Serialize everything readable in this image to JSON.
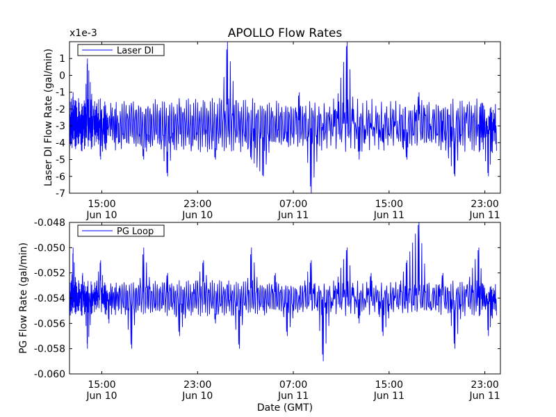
{
  "title": "APOLLO Flow Rates",
  "xlabel": "Date (GMT)",
  "line_color": "#0000ff",
  "chart_data": [
    {
      "type": "line",
      "ylabel": "Laser DI Flow Rate (gal/min)",
      "offset_text": "x1e-3",
      "legend": "Laser DI",
      "legend_position": "upper-left",
      "ylim": [
        -7,
        2
      ],
      "yticks": [
        1,
        0,
        -1,
        -2,
        -3,
        -4,
        -5,
        -6,
        -7
      ],
      "ytick_labels": [
        "1",
        "0",
        "-1",
        "-2",
        "-3",
        "-4",
        "-5",
        "-6",
        "-7"
      ],
      "xticks": [
        {
          "time": "15:00",
          "date": "Jun 10"
        },
        {
          "time": "23:00",
          "date": "Jun 10"
        },
        {
          "time": "07:00",
          "date": "Jun 11"
        },
        {
          "time": "15:00",
          "date": "Jun 11"
        },
        {
          "time": "23:00",
          "date": "Jun 11"
        }
      ],
      "x_hours": [
        12,
        12.3,
        12.6,
        13.0,
        13.4,
        13.8,
        14.3,
        14.9,
        15.6,
        16.5,
        17.5,
        18.5,
        19.5,
        20.5,
        21.5,
        22.5,
        23.5,
        24.5,
        25.5,
        26.5,
        27.5,
        28.5,
        29.5,
        30.5,
        31.5,
        32.5,
        33.5,
        34.5,
        35.5,
        36.5,
        37.5,
        38.5,
        39.5,
        40.5,
        41.5,
        42.5,
        43.5,
        44.5,
        45.5,
        46.5,
        47.3,
        48.0
      ],
      "values": [
        -2.5,
        -5,
        -1,
        -3,
        -4,
        1,
        -2,
        -5,
        -3,
        -4,
        -2,
        -5,
        -3,
        -6,
        -2,
        -4,
        -3,
        -5,
        2,
        -3,
        -5,
        -6,
        -3,
        -4,
        -1,
        -7,
        -3,
        -2,
        2,
        -5,
        -3,
        -4,
        -3,
        -5,
        -1,
        -3,
        -4,
        -6,
        -2,
        -3,
        -6,
        -3
      ]
    },
    {
      "type": "line",
      "ylabel": "PG Flow Rate (gal/min)",
      "legend": "PG Loop",
      "legend_position": "upper-left",
      "ylim": [
        -0.06,
        -0.048
      ],
      "yticks": [
        -0.048,
        -0.05,
        -0.052,
        -0.054,
        -0.056,
        -0.058,
        -0.06
      ],
      "ytick_labels": [
        "-0.048",
        "-0.050",
        "-0.052",
        "-0.054",
        "-0.056",
        "-0.058",
        "-0.060"
      ],
      "xticks": [
        {
          "time": "15:00",
          "date": "Jun 10"
        },
        {
          "time": "23:00",
          "date": "Jun 10"
        },
        {
          "time": "07:00",
          "date": "Jun 11"
        },
        {
          "time": "15:00",
          "date": "Jun 11"
        },
        {
          "time": "23:00",
          "date": "Jun 11"
        }
      ],
      "x_hours": [
        12,
        12.3,
        12.6,
        13.0,
        13.4,
        13.8,
        14.3,
        14.9,
        15.6,
        16.5,
        17.5,
        18.5,
        19.5,
        20.5,
        21.5,
        22.5,
        23.5,
        24.5,
        25.5,
        26.5,
        27.5,
        28.5,
        29.5,
        30.5,
        31.5,
        32.5,
        33.5,
        34.5,
        35.5,
        36.5,
        37.5,
        38.5,
        39.5,
        40.5,
        41.5,
        42.5,
        43.5,
        44.5,
        45.5,
        46.5,
        47.3,
        48.0
      ],
      "values": [
        -0.053,
        -0.057,
        -0.05,
        -0.055,
        -0.052,
        -0.058,
        -0.054,
        -0.051,
        -0.056,
        -0.053,
        -0.058,
        -0.05,
        -0.055,
        -0.052,
        -0.057,
        -0.054,
        -0.051,
        -0.056,
        -0.053,
        -0.058,
        -0.05,
        -0.055,
        -0.052,
        -0.057,
        -0.054,
        -0.051,
        -0.059,
        -0.053,
        -0.05,
        -0.056,
        -0.052,
        -0.057,
        -0.054,
        -0.051,
        -0.048,
        -0.055,
        -0.052,
        -0.058,
        -0.053,
        -0.05,
        -0.057,
        -0.054
      ]
    }
  ]
}
